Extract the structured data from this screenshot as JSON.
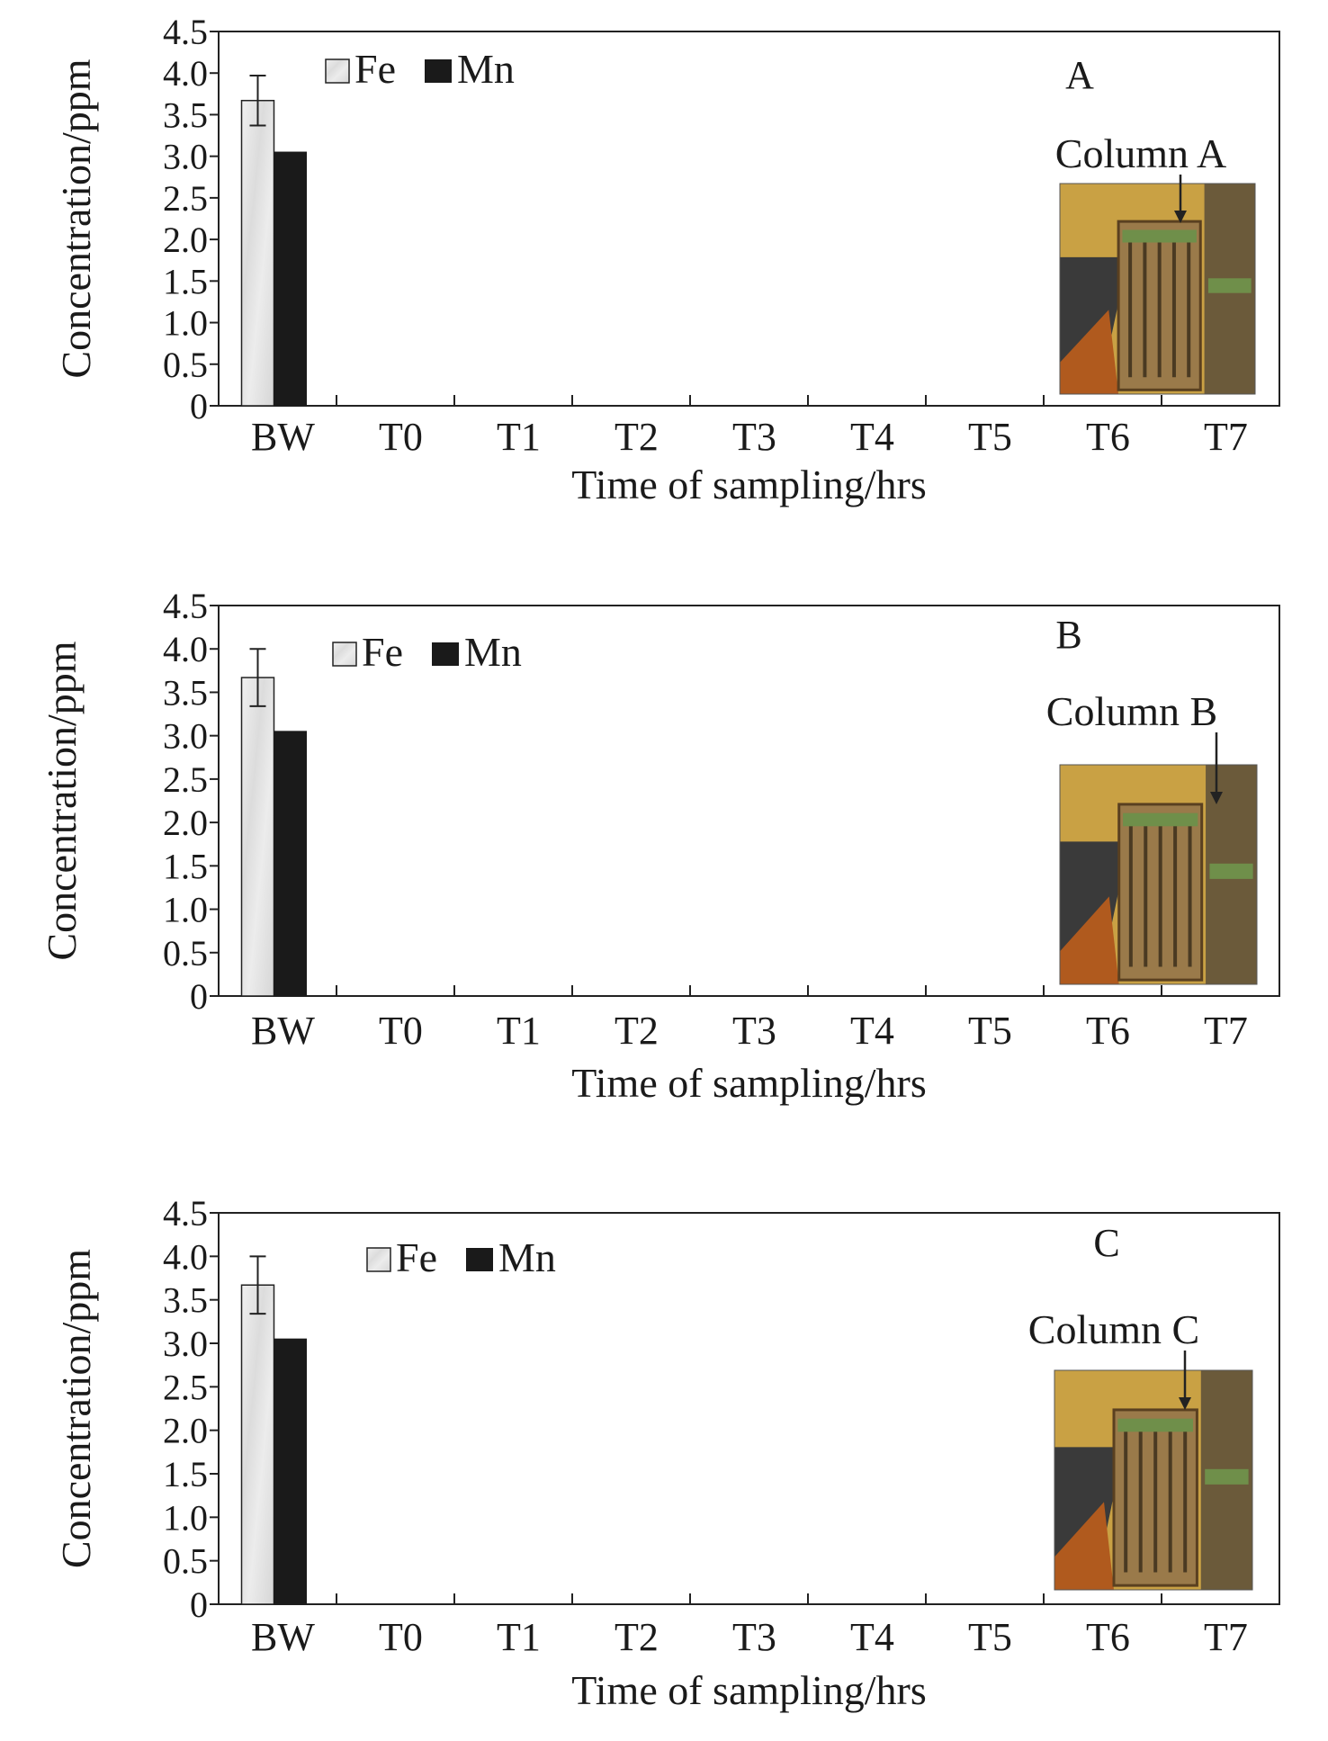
{
  "colors": {
    "fe": "#e6e6e6",
    "mn": "#1a1a1a",
    "axis": "#222222",
    "photo_wall": "#c9a144",
    "photo_floor": "#3a3a3a",
    "photo_rig": "#9a7a4a",
    "photo_accent": "#b05a1e",
    "photo_green": "#6f8f4a"
  },
  "chart_data": [
    {
      "type": "bar",
      "panel_letter": "A",
      "inset_label": "Column A",
      "xlabel": "Time of sampling/hrs",
      "ylabel": "Concentration/ppm",
      "categories": [
        "BW",
        "T0",
        "T1",
        "T2",
        "T3",
        "T4",
        "T5",
        "T6",
        "T7"
      ],
      "series": [
        {
          "name": "Fe",
          "values": [
            3.67,
            0,
            0,
            0,
            0,
            0,
            0,
            0,
            0
          ],
          "error": [
            0.3,
            0,
            0,
            0,
            0,
            0,
            0,
            0,
            0
          ]
        },
        {
          "name": "Mn",
          "values": [
            3.05,
            0,
            0,
            0,
            0,
            0,
            0,
            0,
            0
          ]
        }
      ],
      "ylim": [
        0,
        4.5
      ],
      "yticks": [
        "0",
        "0.5",
        "1.0",
        "1.5",
        "2.0",
        "2.5",
        "3.0",
        "3.5",
        "4.0",
        "4.5"
      ],
      "legend_position": "top-left"
    },
    {
      "type": "bar",
      "panel_letter": "B",
      "inset_label": "Column B",
      "xlabel": "Time of sampling/hrs",
      "ylabel": "Concentration/ppm",
      "categories": [
        "BW",
        "T0",
        "T1",
        "T2",
        "T3",
        "T4",
        "T5",
        "T6",
        "T7"
      ],
      "series": [
        {
          "name": "Fe",
          "values": [
            3.67,
            0,
            0,
            0,
            0,
            0,
            0,
            0,
            0
          ],
          "error": [
            0.33,
            0,
            0,
            0,
            0,
            0,
            0,
            0,
            0
          ]
        },
        {
          "name": "Mn",
          "values": [
            3.05,
            0,
            0,
            0,
            0,
            0,
            0,
            0,
            0
          ]
        }
      ],
      "ylim": [
        0,
        4.5
      ],
      "yticks": [
        "0",
        "0.5",
        "1.0",
        "1.5",
        "2.0",
        "2.5",
        "3.0",
        "3.5",
        "4.0",
        "4.5"
      ],
      "legend_position": "top-left"
    },
    {
      "type": "bar",
      "panel_letter": "C",
      "inset_label": "Column C",
      "xlabel": "Time of sampling/hrs",
      "ylabel": "Concentration/ppm",
      "categories": [
        "BW",
        "T0",
        "T1",
        "T2",
        "T3",
        "T4",
        "T5",
        "T6",
        "T7"
      ],
      "series": [
        {
          "name": "Fe",
          "values": [
            3.67,
            0,
            0,
            0,
            0,
            0,
            0,
            0,
            0
          ],
          "error": [
            0.33,
            0,
            0,
            0,
            0,
            0,
            0,
            0,
            0
          ]
        },
        {
          "name": "Mn",
          "values": [
            3.05,
            0,
            0,
            0,
            0,
            0,
            0,
            0,
            0
          ]
        }
      ],
      "ylim": [
        0,
        4.5
      ],
      "yticks": [
        "0",
        "0.5",
        "1.0",
        "1.5",
        "2.0",
        "2.5",
        "3.0",
        "3.5",
        "4.0",
        "4.5"
      ],
      "legend_position": "top-left"
    }
  ]
}
